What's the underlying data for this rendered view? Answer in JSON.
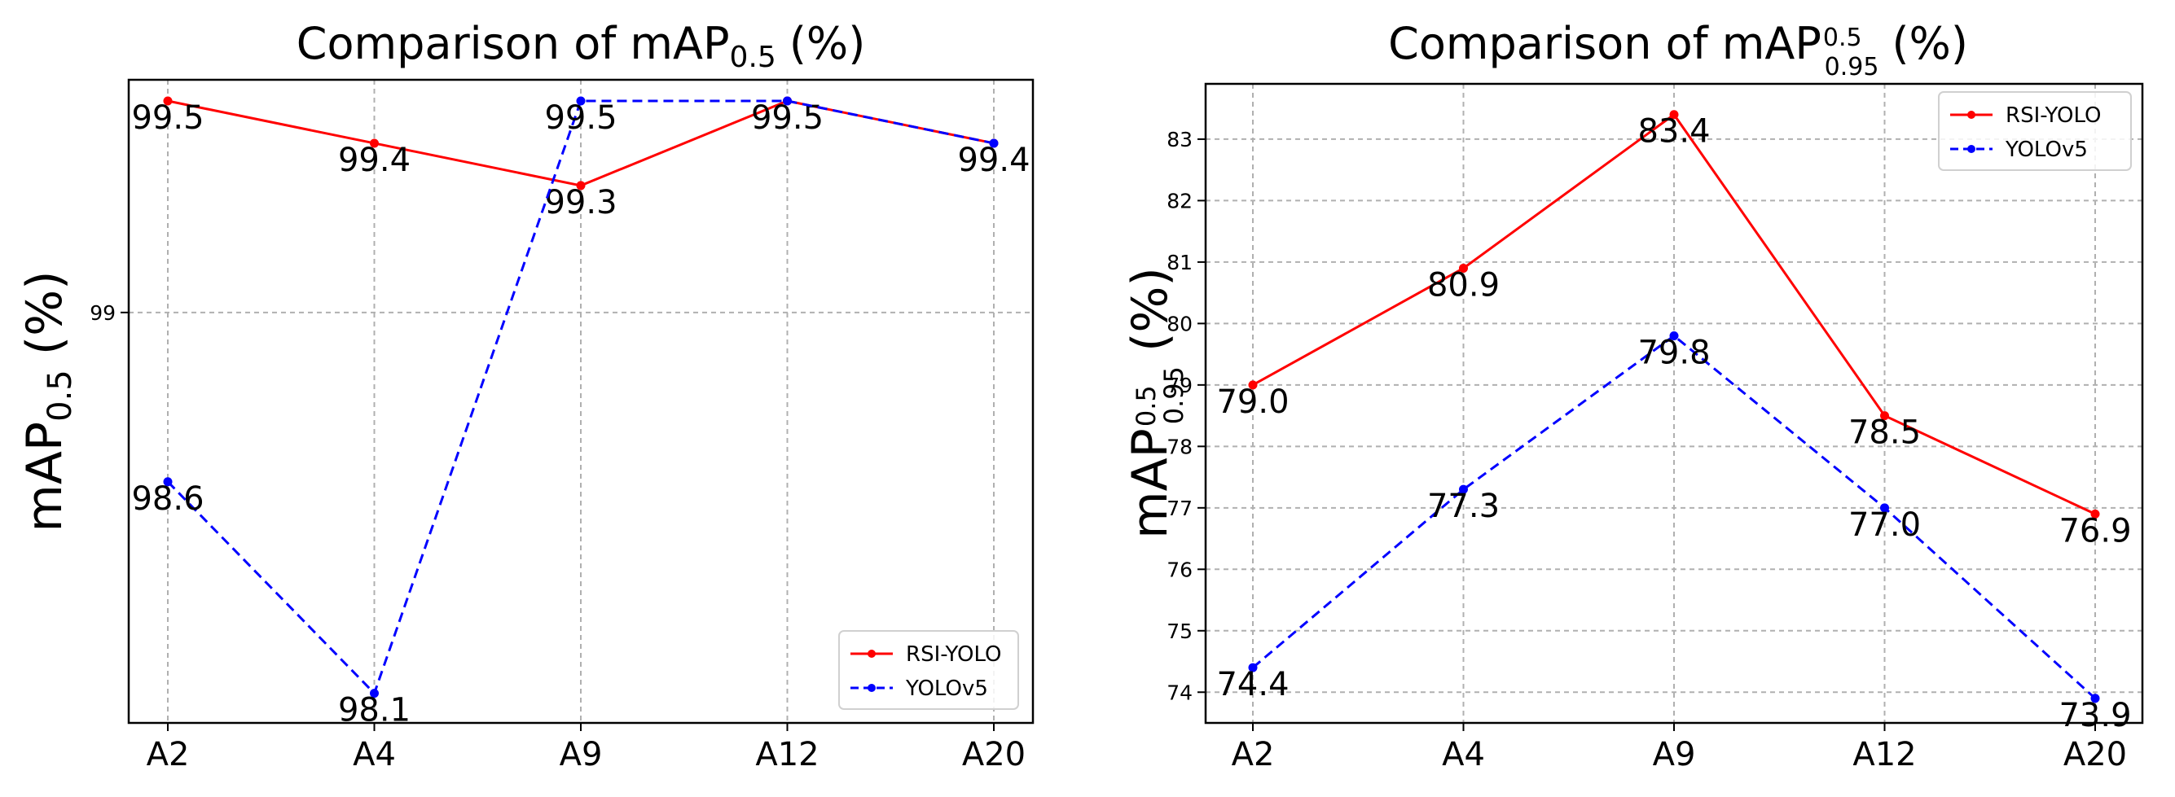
{
  "chart_data": [
    {
      "type": "line",
      "title": "Comparison of mAP",
      "title_subscript": "0.5",
      "title_suffix": "(%)",
      "ylabel": "mAP",
      "ylabel_subscript": "0.5",
      "ylabel_suffix": "(%)",
      "xlabel": "",
      "categories": [
        "A2",
        "A4",
        "A9",
        "A12",
        "A20"
      ],
      "ylim": [
        98.03,
        99.55
      ],
      "yticks": [
        99
      ],
      "ytick_labels": [
        "99"
      ],
      "grid": true,
      "legend_position": "bottom-right",
      "series": [
        {
          "name": "RSI-YOLO",
          "color": "#ff0000",
          "style": "solid",
          "values": [
            99.5,
            99.4,
            99.3,
            99.5,
            99.4
          ],
          "labels": [
            "99.5",
            "99.4",
            "99.3",
            "99.5",
            "99.4"
          ]
        },
        {
          "name": "YOLOv5",
          "color": "#0000ff",
          "style": "dashed",
          "values": [
            98.6,
            98.1,
            99.5,
            99.5,
            99.4
          ],
          "labels": [
            "98.6",
            "98.1",
            "99.5",
            "",
            ""
          ]
        }
      ]
    },
    {
      "type": "line",
      "title": "Comparison of mAP",
      "title_superscript": "0.5",
      "title_subscript": "0.95",
      "title_suffix": "(%)",
      "ylabel": "mAP",
      "ylabel_superscript": "0.5",
      "ylabel_subscript": "0.95",
      "ylabel_suffix": "(%)",
      "xlabel": "",
      "categories": [
        "A2",
        "A4",
        "A9",
        "A12",
        "A20"
      ],
      "ylim": [
        73.5,
        83.9
      ],
      "yticks": [
        74,
        75,
        76,
        77,
        78,
        79,
        80,
        81,
        82,
        83
      ],
      "ytick_labels": [
        "74",
        "75",
        "76",
        "77",
        "78",
        "79",
        "80",
        "81",
        "82",
        "83"
      ],
      "grid": true,
      "legend_position": "top-right",
      "series": [
        {
          "name": "RSI-YOLO",
          "color": "#ff0000",
          "style": "solid",
          "values": [
            79.0,
            80.9,
            83.4,
            78.5,
            76.9
          ],
          "labels": [
            "79.0",
            "80.9",
            "83.4",
            "78.5",
            "76.9"
          ]
        },
        {
          "name": "YOLOv5",
          "color": "#0000ff",
          "style": "dashed",
          "values": [
            74.4,
            77.3,
            79.8,
            77.0,
            73.9
          ],
          "labels": [
            "74.4",
            "77.3",
            "79.8",
            "77.0",
            "73.9"
          ]
        }
      ]
    }
  ]
}
